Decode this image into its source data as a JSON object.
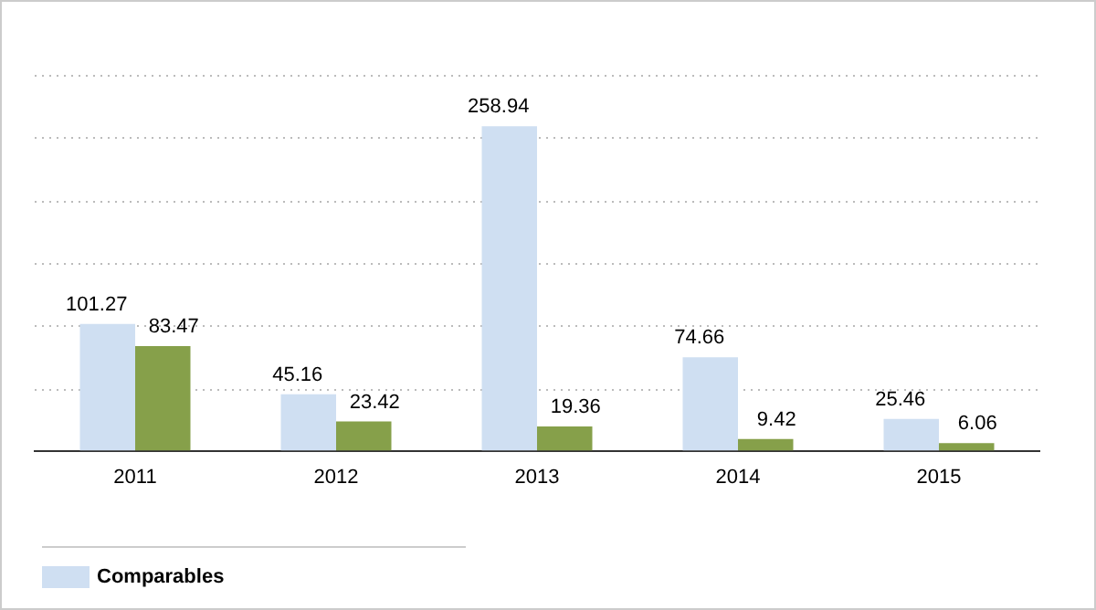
{
  "chart_data": {
    "type": "bar",
    "categories": [
      "2011",
      "2012",
      "2013",
      "2014",
      "2015"
    ],
    "series": [
      {
        "name": "Comparables",
        "color": "#cfdff2",
        "values": [
          101.27,
          45.16,
          258.94,
          74.66,
          25.46
        ]
      },
      {
        "color": "#86a04a",
        "values": [
          83.47,
          23.42,
          19.36,
          9.42,
          6.06
        ]
      }
    ],
    "ylim": [
      0,
      300
    ],
    "yticks": [
      {
        "value": 0,
        "label": null
      },
      {
        "value": 50,
        "label": null
      },
      {
        "value": 100,
        "label": null
      },
      {
        "value": 150,
        "label": null
      },
      {
        "value": 200,
        "label": null
      },
      {
        "value": 250,
        "label": null
      },
      {
        "value": 300,
        "label": null
      }
    ],
    "tick_labels": "x",
    "grid": "y",
    "data_labels": true,
    "legend": "bottom"
  }
}
